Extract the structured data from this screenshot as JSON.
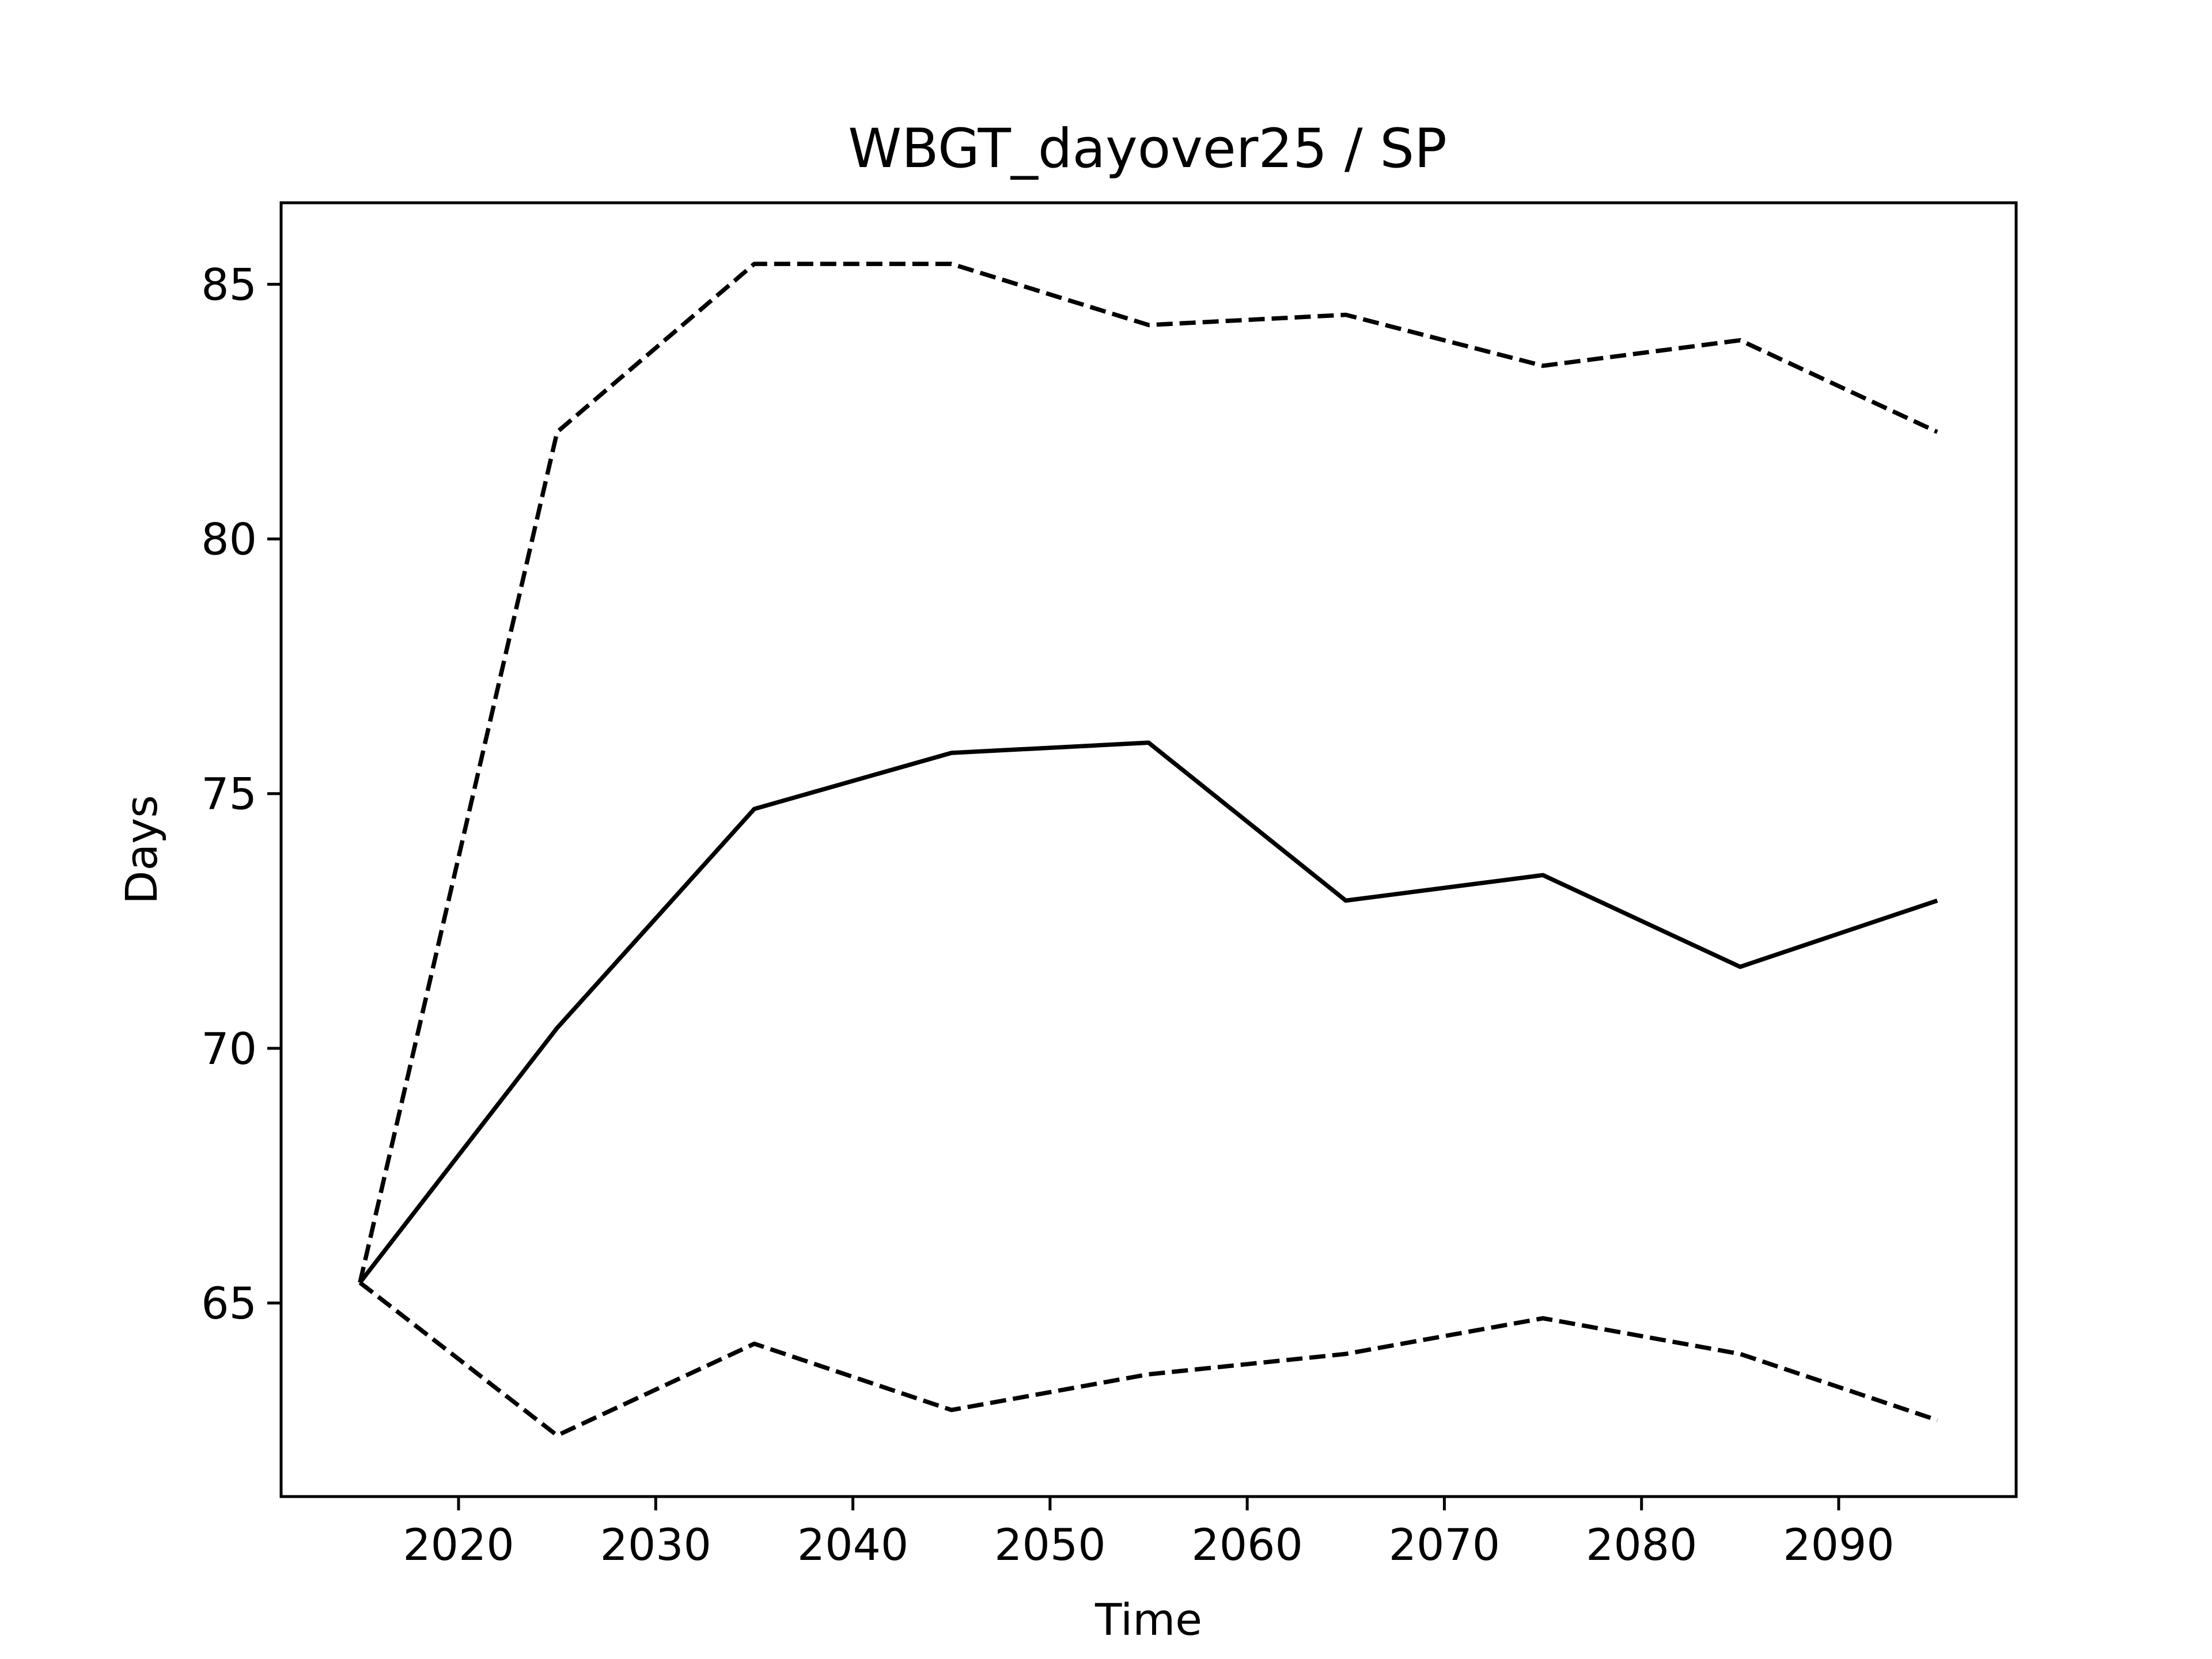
{
  "chart_data": {
    "type": "line",
    "title": "WBGT_dayover25 / SP",
    "xlabel": "Time",
    "ylabel": "Days",
    "xlim": [
      2011,
      2099
    ],
    "ylim": [
      61.2,
      86.6
    ],
    "xticks": [
      2020,
      2030,
      2040,
      2050,
      2060,
      2070,
      2080,
      2090
    ],
    "yticks": [
      65,
      70,
      75,
      80,
      85
    ],
    "grid": false,
    "legend": "none",
    "x": [
      2015,
      2025,
      2035,
      2045,
      2055,
      2065,
      2075,
      2085,
      2095
    ],
    "series": [
      {
        "style": "solid",
        "color": "#000000",
        "values": [
          65.4,
          70.4,
          74.7,
          75.8,
          76.0,
          72.9,
          73.4,
          71.6,
          72.9
        ]
      },
      {
        "style": "dashed",
        "color": "#000000",
        "values": [
          65.4,
          82.1,
          85.4,
          85.4,
          84.2,
          84.4,
          83.4,
          83.9,
          82.1
        ]
      },
      {
        "style": "dashed",
        "color": "#000000",
        "values": [
          65.4,
          62.4,
          64.2,
          62.9,
          63.6,
          64.0,
          64.7,
          64.0,
          62.7
        ]
      }
    ]
  }
}
